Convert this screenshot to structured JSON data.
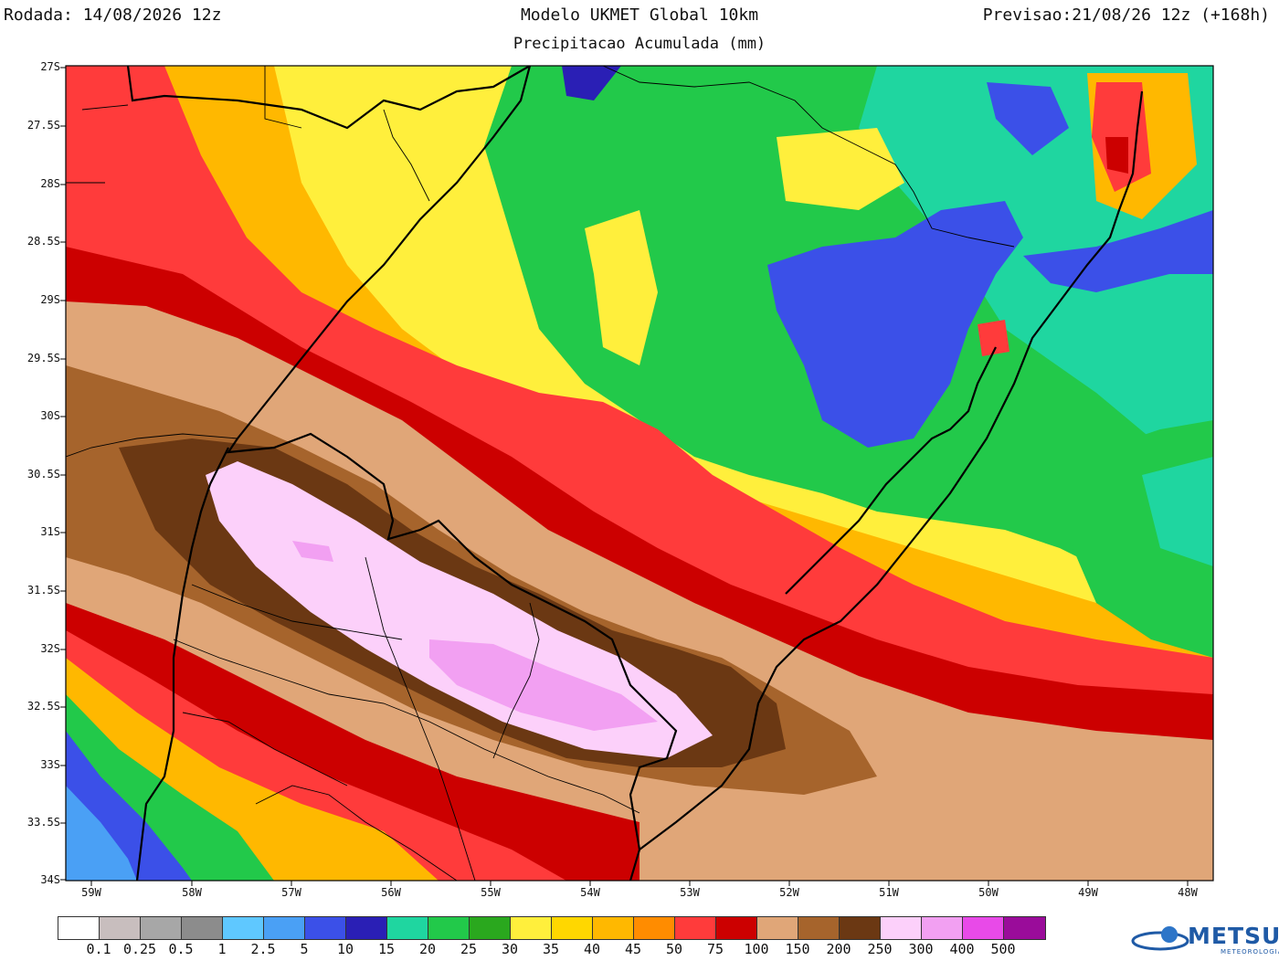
{
  "header": {
    "run": "Rodada: 14/08/2026 12z",
    "model": "Modelo UKMET Global 10km",
    "forecast": "Previsao:21/08/26 12z (+168h)",
    "subtitle": "Precipitacao Acumulada (mm)"
  },
  "axes": {
    "lat_labels": [
      "27S",
      "27.5S",
      "28S",
      "28.5S",
      "29S",
      "29.5S",
      "30S",
      "30.5S",
      "31S",
      "31.5S",
      "32S",
      "32.5S",
      "33S",
      "33.5S",
      "34S"
    ],
    "lon_labels": [
      "59W",
      "58W",
      "57W",
      "56W",
      "55W",
      "54W",
      "53W",
      "52W",
      "51W",
      "50W",
      "49W",
      "48W"
    ]
  },
  "legend": {
    "colors": [
      "#ffffff",
      "#c8bebe",
      "#a7a7a7",
      "#8c8c8c",
      "#5fc8ff",
      "#4aa0f5",
      "#3b50e8",
      "#2a1fb5",
      "#1fd6a0",
      "#22c94a",
      "#2aa81e",
      "#ffef3c",
      "#ffd700",
      "#ffb800",
      "#ff8c00",
      "#ff3b3b",
      "#cc0000",
      "#e0a678",
      "#a6642c",
      "#6b3813",
      "#fcd0fa",
      "#f2a0f2",
      "#e84ae8",
      "#9a0c9a"
    ],
    "labels": [
      "0.1",
      "0.25",
      "0.5",
      "1",
      "2.5",
      "5",
      "10",
      "15",
      "20",
      "25",
      "30",
      "35",
      "40",
      "45",
      "50",
      "75",
      "100",
      "150",
      "200",
      "250",
      "300",
      "400",
      "500"
    ]
  },
  "logo": {
    "name": "METSUL",
    "tagline": "METEOROLOGIA"
  }
}
